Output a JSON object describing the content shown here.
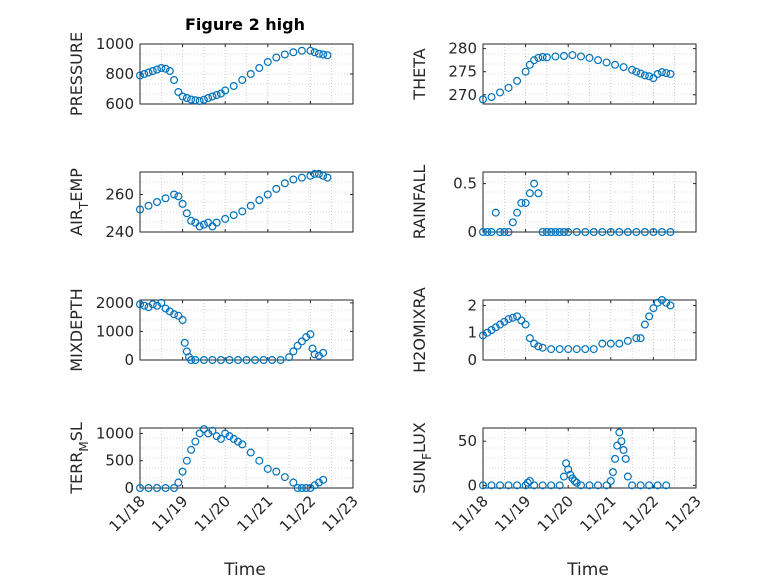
{
  "title": "Figure 2 high",
  "chart_data": [
    {
      "type": "scatter",
      "ylabel_main": "PRESSURE",
      "ylabel_sub": "",
      "ylim": [
        600,
        1000
      ],
      "yticks": [
        600,
        800,
        1000
      ],
      "yticklabels": [
        "600",
        "800",
        "1000"
      ],
      "x": [
        0,
        0.1,
        0.2,
        0.3,
        0.4,
        0.5,
        0.6,
        0.7,
        0.8,
        0.9,
        1.0,
        1.1,
        1.2,
        1.3,
        1.4,
        1.5,
        1.6,
        1.7,
        1.8,
        1.9,
        2.0,
        2.2,
        2.4,
        2.6,
        2.8,
        3.0,
        3.2,
        3.4,
        3.6,
        3.8,
        4.0,
        4.1,
        4.2,
        4.3,
        4.4
      ],
      "y": [
        790,
        800,
        810,
        820,
        830,
        840,
        835,
        820,
        760,
        680,
        650,
        640,
        630,
        625,
        620,
        628,
        640,
        650,
        660,
        670,
        690,
        720,
        760,
        800,
        840,
        880,
        910,
        930,
        945,
        955,
        955,
        945,
        935,
        930,
        925
      ]
    },
    {
      "type": "scatter",
      "ylabel_main": "THETA",
      "ylabel_sub": "",
      "ylim": [
        268,
        281
      ],
      "yticks": [
        270,
        275,
        280
      ],
      "yticklabels": [
        "270",
        "275",
        "280"
      ],
      "x": [
        0,
        0.2,
        0.4,
        0.6,
        0.8,
        1.0,
        1.1,
        1.2,
        1.3,
        1.4,
        1.5,
        1.7,
        1.9,
        2.1,
        2.3,
        2.5,
        2.7,
        2.9,
        3.1,
        3.3,
        3.5,
        3.6,
        3.7,
        3.8,
        3.9,
        4.0,
        4.1,
        4.2,
        4.3,
        4.4
      ],
      "y": [
        269,
        269.5,
        270.5,
        271.5,
        273,
        275,
        276.5,
        277.5,
        278,
        278.2,
        278.1,
        278.3,
        278.4,
        278.6,
        278.3,
        278,
        277.5,
        277,
        276.5,
        276,
        275.4,
        275,
        274.6,
        274.2,
        274,
        273.6,
        274.5,
        274.9,
        274.7,
        274.5
      ]
    },
    {
      "type": "scatter",
      "ylabel_main": "AIR",
      "ylabel_sub": "T",
      "ylabel_rest": "EMP",
      "ylim": [
        240,
        272
      ],
      "yticks": [
        240,
        260
      ],
      "yticklabels": [
        "240",
        "260"
      ],
      "x": [
        0,
        0.2,
        0.4,
        0.6,
        0.8,
        0.9,
        1.0,
        1.1,
        1.2,
        1.3,
        1.4,
        1.5,
        1.6,
        1.7,
        1.8,
        2.0,
        2.2,
        2.4,
        2.6,
        2.8,
        3.0,
        3.2,
        3.4,
        3.6,
        3.8,
        4.0,
        4.1,
        4.2,
        4.3,
        4.4
      ],
      "y": [
        252,
        254,
        256,
        258,
        260,
        259,
        255,
        250,
        246,
        245,
        243,
        244,
        245,
        243,
        245,
        247,
        249,
        251,
        254,
        257,
        260,
        263,
        266,
        268,
        269,
        270,
        271,
        271,
        270,
        269
      ]
    },
    {
      "type": "scatter",
      "ylabel_main": "RAINFALL",
      "ylabel_sub": "",
      "ylim": [
        0,
        0.62
      ],
      "yticks": [
        0,
        0.5
      ],
      "yticklabels": [
        "0",
        "0.5"
      ],
      "x": [
        0,
        0.1,
        0.2,
        0.3,
        0.4,
        0.5,
        0.6,
        0.7,
        0.8,
        0.9,
        1.0,
        1.1,
        1.2,
        1.3,
        1.4,
        1.5,
        1.6,
        1.7,
        1.8,
        1.9,
        2.0,
        2.2,
        2.4,
        2.6,
        2.8,
        3.0,
        3.2,
        3.4,
        3.6,
        3.8,
        4.0,
        4.2,
        4.4
      ],
      "y": [
        0,
        0,
        0,
        0.2,
        0,
        0,
        0,
        0.1,
        0.2,
        0.3,
        0.3,
        0.4,
        0.5,
        0.4,
        0,
        0,
        0,
        0,
        0,
        0,
        0,
        0,
        0,
        0,
        0,
        0,
        0,
        0,
        0,
        0,
        0,
        0,
        0
      ]
    },
    {
      "type": "scatter",
      "ylabel_main": "MIXDEPTH",
      "ylabel_sub": "",
      "ylim": [
        0,
        2100
      ],
      "yticks": [
        0,
        1000,
        2000
      ],
      "yticklabels": [
        "0",
        "1000",
        "2000"
      ],
      "x": [
        0,
        0.1,
        0.2,
        0.3,
        0.4,
        0.5,
        0.6,
        0.7,
        0.8,
        0.9,
        1.0,
        1.05,
        1.1,
        1.15,
        1.2,
        1.3,
        1.5,
        1.7,
        1.9,
        2.1,
        2.3,
        2.5,
        2.7,
        2.9,
        3.1,
        3.3,
        3.5,
        3.6,
        3.7,
        3.8,
        3.9,
        4.0,
        4.05,
        4.1,
        4.2,
        4.3
      ],
      "y": [
        1950,
        1900,
        1850,
        1950,
        1900,
        2000,
        1800,
        1700,
        1600,
        1550,
        1400,
        600,
        300,
        100,
        0,
        0,
        0,
        0,
        0,
        0,
        0,
        0,
        0,
        0,
        0,
        0,
        100,
        300,
        500,
        650,
        800,
        900,
        400,
        200,
        150,
        250
      ]
    },
    {
      "type": "scatter",
      "ylabel_main": "H2OMIXRA",
      "ylabel_sub": "",
      "ylim": [
        0,
        2.2
      ],
      "yticks": [
        0,
        1,
        2
      ],
      "yticklabels": [
        "0",
        "1",
        "2"
      ],
      "x": [
        0,
        0.1,
        0.2,
        0.3,
        0.4,
        0.5,
        0.6,
        0.7,
        0.8,
        0.9,
        1.0,
        1.1,
        1.2,
        1.3,
        1.4,
        1.6,
        1.8,
        2.0,
        2.2,
        2.4,
        2.6,
        2.8,
        3.0,
        3.2,
        3.4,
        3.6,
        3.7,
        3.8,
        3.9,
        4.0,
        4.1,
        4.2,
        4.3,
        4.4
      ],
      "y": [
        0.9,
        1.0,
        1.1,
        1.2,
        1.3,
        1.4,
        1.5,
        1.55,
        1.6,
        1.45,
        1.3,
        0.8,
        0.6,
        0.5,
        0.45,
        0.4,
        0.4,
        0.4,
        0.4,
        0.4,
        0.4,
        0.6,
        0.6,
        0.6,
        0.7,
        0.8,
        0.8,
        1.3,
        1.6,
        1.9,
        2.1,
        2.2,
        2.1,
        2.0
      ]
    },
    {
      "type": "scatter",
      "ylabel_main": "TERR",
      "ylabel_sub": "M",
      "ylabel_rest": "SL",
      "ylim": [
        0,
        1100
      ],
      "yticks": [
        0,
        500,
        1000
      ],
      "yticklabels": [
        "0",
        "500",
        "1000"
      ],
      "x": [
        0,
        0.2,
        0.4,
        0.6,
        0.8,
        0.9,
        1.0,
        1.1,
        1.2,
        1.3,
        1.4,
        1.5,
        1.6,
        1.7,
        1.8,
        1.9,
        2.0,
        2.1,
        2.2,
        2.3,
        2.4,
        2.6,
        2.8,
        3.0,
        3.2,
        3.4,
        3.6,
        3.7,
        3.8,
        3.9,
        4.0,
        4.1,
        4.2,
        4.3
      ],
      "y": [
        0,
        0,
        0,
        0,
        0,
        100,
        300,
        500,
        700,
        850,
        1000,
        1080,
        1000,
        1050,
        950,
        900,
        1000,
        950,
        900,
        850,
        800,
        650,
        500,
        350,
        300,
        200,
        100,
        0,
        0,
        0,
        0,
        50,
        100,
        150
      ]
    },
    {
      "type": "scatter",
      "ylabel_main": "SUN",
      "ylabel_sub": "F",
      "ylabel_rest": "LUX",
      "ylim": [
        -3,
        65
      ],
      "yticks": [
        0,
        50
      ],
      "yticklabels": [
        "0",
        "50"
      ],
      "x": [
        0,
        0.2,
        0.4,
        0.6,
        0.8,
        1.0,
        1.05,
        1.1,
        1.2,
        1.4,
        1.6,
        1.8,
        1.9,
        1.95,
        2.0,
        2.05,
        2.1,
        2.15,
        2.2,
        2.3,
        2.5,
        2.7,
        2.9,
        3.0,
        3.05,
        3.1,
        3.15,
        3.2,
        3.25,
        3.3,
        3.35,
        3.4,
        3.5,
        3.7,
        3.9,
        4.1,
        4.3
      ],
      "y": [
        0,
        0,
        0,
        0,
        0,
        0,
        3,
        5,
        0,
        0,
        0,
        0,
        10,
        25,
        18,
        12,
        8,
        5,
        3,
        0,
        0,
        0,
        0,
        5,
        15,
        30,
        45,
        60,
        50,
        40,
        30,
        10,
        0,
        0,
        0,
        0,
        0
      ]
    }
  ],
  "xtick_labels": [
    "11/18",
    "11/19",
    "11/20",
    "11/21",
    "11/22",
    "11/23"
  ],
  "xlabel": "Time"
}
